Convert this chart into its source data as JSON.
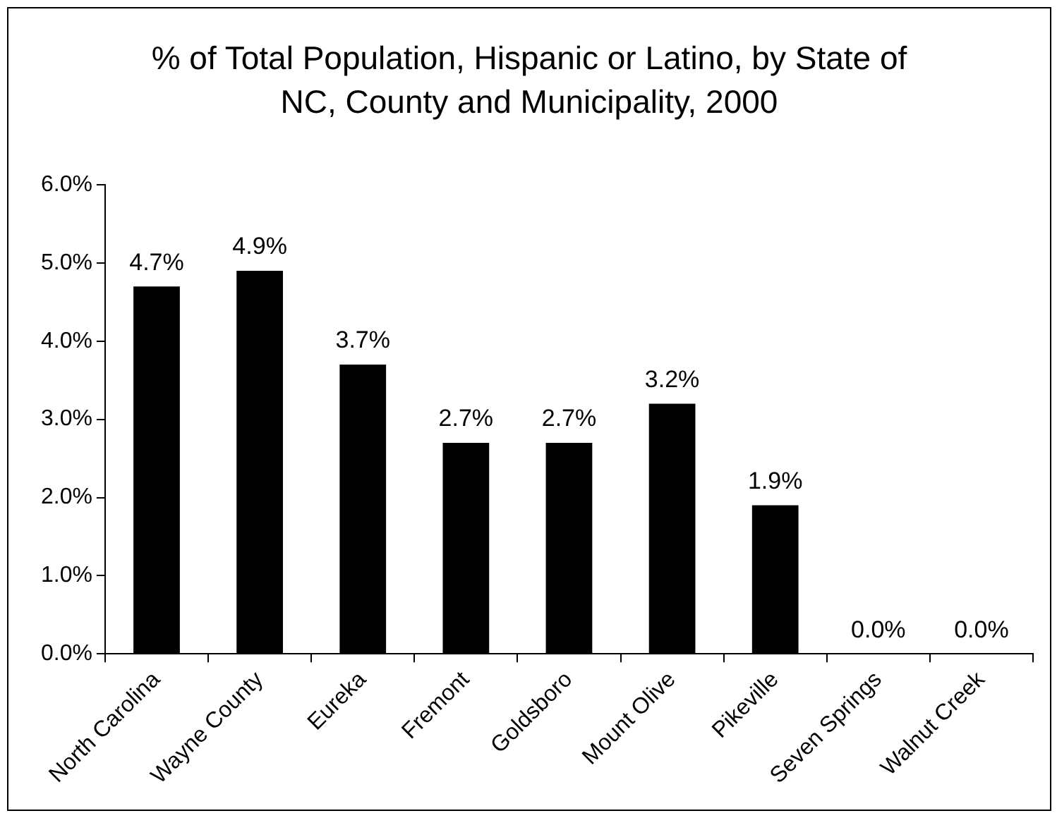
{
  "chart_data": {
    "type": "bar",
    "title": "% of Total Population, Hispanic or Latino, by State of NC, County and Municipality, 2000",
    "categories": [
      "North Carolina",
      "Wayne County",
      "Eureka",
      "Fremont",
      "Goldsboro",
      "Mount Olive",
      "Pikeville",
      "Seven Springs",
      "Walnut Creek"
    ],
    "values": [
      4.7,
      4.9,
      3.7,
      2.7,
      2.7,
      3.2,
      1.9,
      0.0,
      0.0
    ],
    "value_labels": [
      "4.7%",
      "4.9%",
      "3.7%",
      "2.7%",
      "2.7%",
      "3.2%",
      "1.9%",
      "0.0%",
      "0.0%"
    ],
    "color": "#000000",
    "ylim": [
      0,
      6
    ],
    "yticks": [
      {
        "value": 0,
        "label": "0.0%"
      },
      {
        "value": 1,
        "label": "1.0%"
      },
      {
        "value": 2,
        "label": "2.0%"
      },
      {
        "value": 3,
        "label": "3.0%"
      },
      {
        "value": 4,
        "label": "4.0%"
      },
      {
        "value": 5,
        "label": "5.0%"
      },
      {
        "value": 6,
        "label": "6.0%"
      }
    ],
    "grid": false,
    "legend": false
  }
}
